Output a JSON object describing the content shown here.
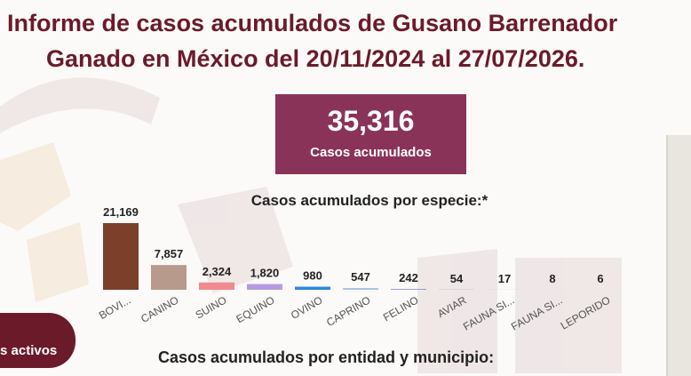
{
  "header": {
    "title_line1": "Informe de casos acumulados de Gusano Barrenador",
    "title_line2": "Ganado en México del 20/11/2024 al 27/07/2026."
  },
  "kpi": {
    "value": "35,316",
    "label": "Casos acumulados"
  },
  "button": {
    "label": "s activos"
  },
  "section": {
    "title": "Casos acumulados por entidad y municipio:"
  },
  "chart_data": {
    "type": "bar",
    "title": "Casos acumulados por especie:*",
    "categories": [
      "BOVI...",
      "CANINO",
      "SUINO",
      "EQUINO",
      "OVINO",
      "CAPRINO",
      "FELINO",
      "AVIAR",
      "FAUNA SI...",
      "FAUNA SI...",
      "LEPORIDO"
    ],
    "values": [
      21169,
      7857,
      2324,
      1820,
      980,
      547,
      242,
      54,
      17,
      8,
      6
    ],
    "value_labels": [
      "21,169",
      "7,857",
      "2,324",
      "1,820",
      "980",
      "547",
      "242",
      "54",
      "17",
      "8",
      "6"
    ],
    "colors": [
      "#7b3f2a",
      "#b89a8c",
      "#f08a90",
      "#b79ae0",
      "#2e86de",
      "#a8c0e8",
      "#8a8ec8",
      "#8a8ec8",
      "#8a8ec8",
      "#8a8ec8",
      "#8a8ec8"
    ]
  }
}
